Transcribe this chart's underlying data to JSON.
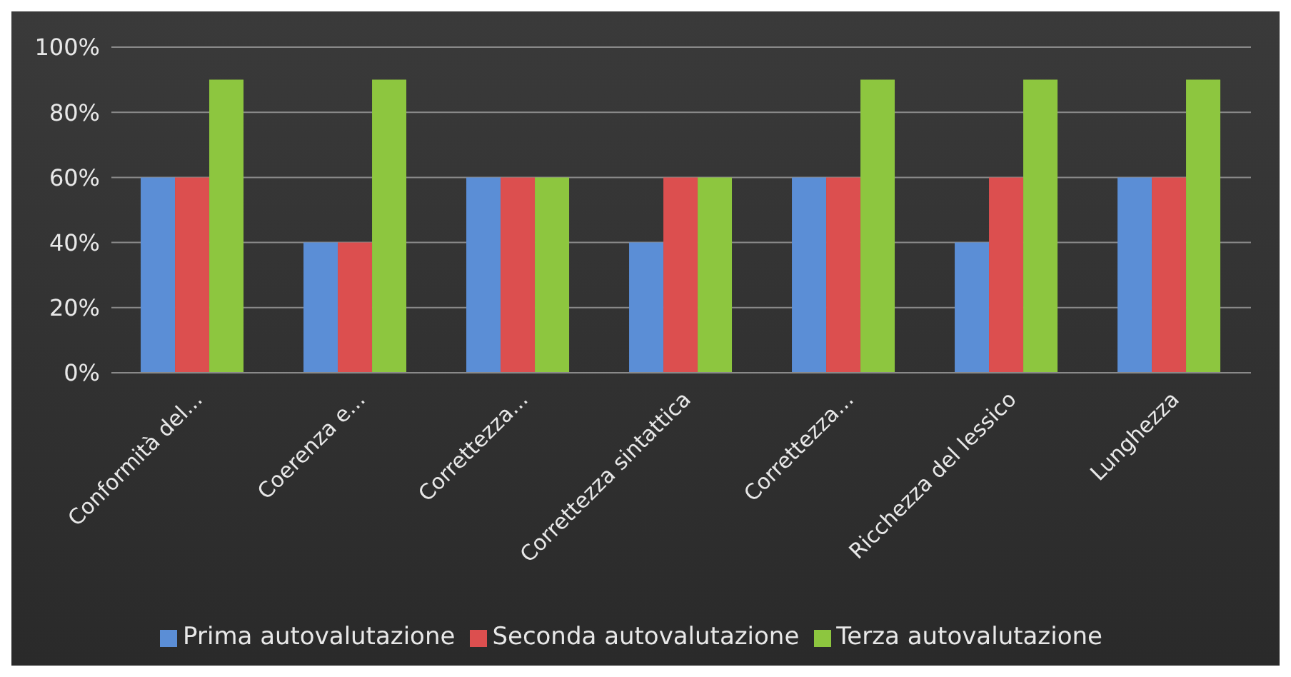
{
  "chart_data": {
    "type": "bar",
    "categories": [
      "Conformità del...",
      "Coerenza e...",
      "Correttezza...",
      "Correttezza sintattica",
      "Correttezza...",
      "Ricchezza del lessico",
      "Lunghezza"
    ],
    "series": [
      {
        "name": "Prima autovalutazione",
        "color": "#5b8ed6",
        "values": [
          60,
          40,
          60,
          40,
          60,
          40,
          60
        ]
      },
      {
        "name": "Seconda autovalutazione",
        "color": "#dc4f4f",
        "values": [
          60,
          40,
          60,
          60,
          60,
          60,
          60
        ]
      },
      {
        "name": "Terza autovalutazione",
        "color": "#8dc63f",
        "values": [
          90,
          90,
          60,
          60,
          90,
          90,
          90
        ]
      }
    ],
    "ylim": [
      0,
      100
    ],
    "yticks": [
      {
        "value": 0,
        "label": "0%"
      },
      {
        "value": 20,
        "label": "20%"
      },
      {
        "value": 40,
        "label": "40%"
      },
      {
        "value": 60,
        "label": "60%"
      },
      {
        "value": 80,
        "label": "80%"
      },
      {
        "value": 100,
        "label": "100%"
      }
    ],
    "grid": "y",
    "legend": "bottom"
  }
}
